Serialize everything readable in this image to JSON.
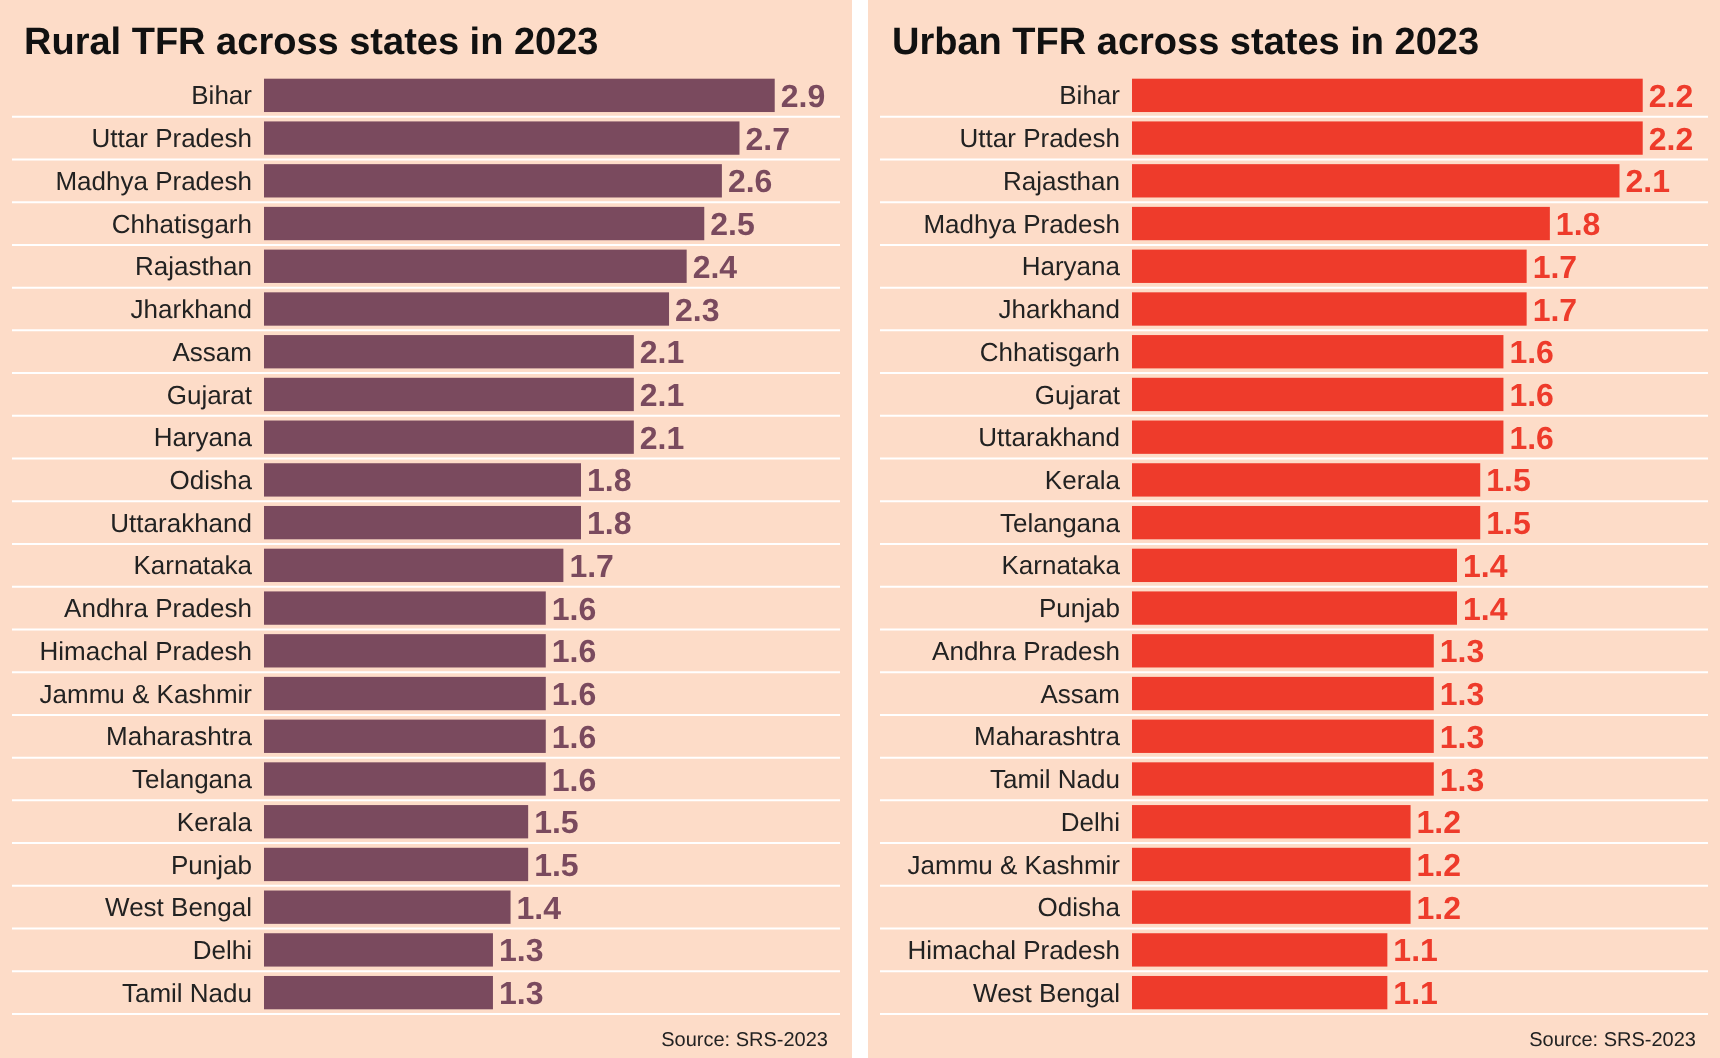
{
  "chart_data": [
    {
      "type": "bar",
      "orientation": "horizontal",
      "title": "Rural TFR across states in 2023",
      "data_labels": true,
      "categories": [
        "Bihar",
        "Uttar Pradesh",
        "Madhya Pradesh",
        "Chhatisgarh",
        "Rajasthan",
        "Jharkhand",
        "Assam",
        "Gujarat",
        "Haryana",
        "Odisha",
        "Uttarakhand",
        "Karnataka",
        "Andhra Pradesh",
        "Himachal Pradesh",
        "Jammu & Kashmir",
        "Maharashtra",
        "Telangana",
        "Kerala",
        "Punjab",
        "West Bengal",
        "Delhi",
        "Tamil Nadu"
      ],
      "values": [
        2.9,
        2.7,
        2.6,
        2.5,
        2.4,
        2.3,
        2.1,
        2.1,
        2.1,
        1.8,
        1.8,
        1.7,
        1.6,
        1.6,
        1.6,
        1.6,
        1.6,
        1.5,
        1.5,
        1.4,
        1.3,
        1.3
      ],
      "color": "#7a4a5e",
      "annotations": [
        "Source: SRS-2023"
      ]
    },
    {
      "type": "bar",
      "orientation": "horizontal",
      "title": "Urban TFR across states in 2023",
      "data_labels": true,
      "categories": [
        "Bihar",
        "Uttar Pradesh",
        "Rajasthan",
        "Madhya Pradesh",
        "Haryana",
        "Jharkhand",
        "Chhatisgarh",
        "Gujarat",
        "Uttarakhand",
        "Kerala",
        "Telangana",
        "Karnataka",
        "Punjab",
        "Andhra Pradesh",
        "Assam",
        "Maharashtra",
        "Tamil Nadu",
        "Delhi",
        "Jammu & Kashmir",
        "Odisha",
        "Himachal Pradesh",
        "West Bengal"
      ],
      "values": [
        2.2,
        2.2,
        2.1,
        1.8,
        1.7,
        1.7,
        1.6,
        1.6,
        1.6,
        1.5,
        1.5,
        1.4,
        1.4,
        1.3,
        1.3,
        1.3,
        1.3,
        1.2,
        1.2,
        1.2,
        1.1,
        1.1
      ],
      "color": "#ee3b2b",
      "annotations": [
        "Source: SRS-2023"
      ]
    }
  ]
}
